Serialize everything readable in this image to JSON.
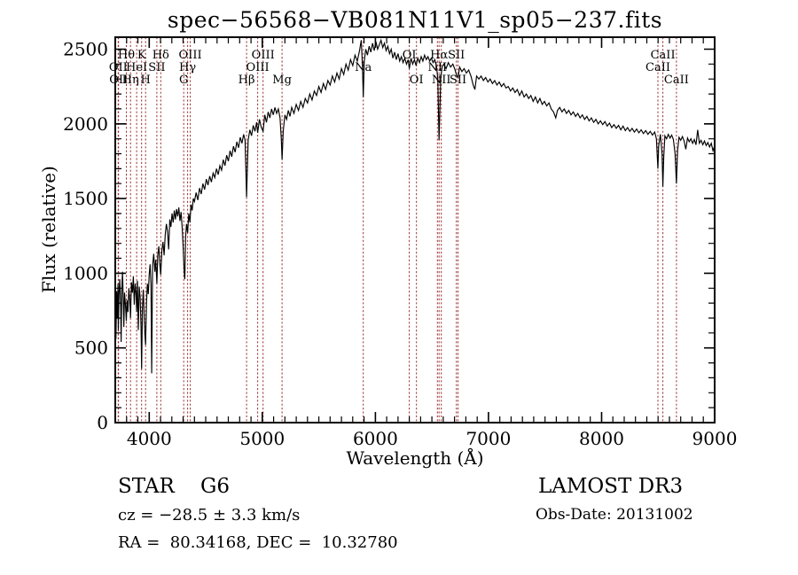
{
  "title": "spec−56568−VB081N11V1_sp05−237.fits",
  "annotations": {
    "class_line": "STAR    G6",
    "cz_line": "cz = −28.5 ± 3.3 km/s",
    "radec_line": "RA =  80.34168, DEC =  10.32780",
    "survey": "LAMOST DR3",
    "obs_date": "Obs-Date: 20131002"
  },
  "chart_data": {
    "type": "line",
    "title": "spec−56568−VB081N11V1_sp05−237.fits",
    "xlabel": "Wavelength (Å)",
    "ylabel": "Flux (relative)",
    "xlim": [
      3700,
      9000
    ],
    "ylim": [
      0,
      2580
    ],
    "x_ticks": [
      4000,
      5000,
      6000,
      7000,
      8000,
      9000
    ],
    "y_ticks": [
      0,
      500,
      1000,
      1500,
      2000,
      2500
    ],
    "x_minor_step": 100,
    "y_minor_step": 100,
    "grid": false,
    "legend": "none",
    "line_color": "#000000",
    "marker_line_color": "#9e3030",
    "spectral_lines": [
      {
        "label": "OII",
        "wavelength": 3726,
        "row": 2
      },
      {
        "label": "OII",
        "wavelength": 3729,
        "row": 3
      },
      {
        "label": "Hθ",
        "wavelength": 3798,
        "row": 1
      },
      {
        "label": "Hη",
        "wavelength": 3835,
        "row": 3
      },
      {
        "label": "HeI",
        "wavelength": 3889,
        "row": 2
      },
      {
        "label": "K",
        "wavelength": 3933,
        "row": 1
      },
      {
        "label": "H",
        "wavelength": 3968,
        "row": 3
      },
      {
        "label": "SII",
        "wavelength": 4068,
        "row": 2
      },
      {
        "label": "Hδ",
        "wavelength": 4102,
        "row": 1
      },
      {
        "label": "G",
        "wavelength": 4305,
        "row": 3
      },
      {
        "label": "Hγ",
        "wavelength": 4340,
        "row": 2
      },
      {
        "label": "OIII",
        "wavelength": 4363,
        "row": 1
      },
      {
        "label": "Hβ",
        "wavelength": 4861,
        "row": 3
      },
      {
        "label": "OIII",
        "wavelength": 4959,
        "row": 2
      },
      {
        "label": "OIII",
        "wavelength": 5007,
        "row": 1
      },
      {
        "label": "Mg",
        "wavelength": 5175,
        "row": 3
      },
      {
        "label": "Na",
        "wavelength": 5893,
        "row": 2
      },
      {
        "label": "OI",
        "wavelength": 6300,
        "row": 1
      },
      {
        "label": "OI",
        "wavelength": 6363,
        "row": 3
      },
      {
        "label": "NII",
        "wavelength": 6548,
        "row": 2
      },
      {
        "label": "Hα",
        "wavelength": 6563,
        "row": 1
      },
      {
        "label": "NII",
        "wavelength": 6583,
        "row": 3
      },
      {
        "label": "SII",
        "wavelength": 6716,
        "row": 1
      },
      {
        "label": "SII",
        "wavelength": 6731,
        "row": 3
      },
      {
        "label": "CaII",
        "wavelength": 8498,
        "row": 2
      },
      {
        "label": "CaII",
        "wavelength": 8542,
        "row": 1
      },
      {
        "label": "CaII",
        "wavelength": 8662,
        "row": 3
      }
    ],
    "spectrum": [
      [
        3700,
        160
      ],
      [
        3701,
        1040
      ],
      [
        3706,
        560
      ],
      [
        3712,
        880
      ],
      [
        3718,
        700
      ],
      [
        3724,
        930
      ],
      [
        3727,
        620
      ],
      [
        3733,
        860
      ],
      [
        3740,
        960
      ],
      [
        3748,
        780
      ],
      [
        3752,
        540
      ],
      [
        3758,
        900
      ],
      [
        3764,
        1010
      ],
      [
        3770,
        850
      ],
      [
        3776,
        640
      ],
      [
        3782,
        870
      ],
      [
        3790,
        790
      ],
      [
        3798,
        680
      ],
      [
        3804,
        820
      ],
      [
        3812,
        740
      ],
      [
        3820,
        900
      ],
      [
        3828,
        820
      ],
      [
        3835,
        700
      ],
      [
        3843,
        940
      ],
      [
        3852,
        870
      ],
      [
        3860,
        980
      ],
      [
        3868,
        790
      ],
      [
        3876,
        930
      ],
      [
        3884,
        860
      ],
      [
        3889,
        740
      ],
      [
        3896,
        950
      ],
      [
        3904,
        620
      ],
      [
        3912,
        910
      ],
      [
        3920,
        840
      ],
      [
        3928,
        640
      ],
      [
        3933,
        360
      ],
      [
        3940,
        760
      ],
      [
        3948,
        890
      ],
      [
        3956,
        700
      ],
      [
        3962,
        590
      ],
      [
        3968,
        520
      ],
      [
        3976,
        800
      ],
      [
        3984,
        930
      ],
      [
        3992,
        860
      ],
      [
        4000,
        990
      ],
      [
        4008,
        1060
      ],
      [
        4016,
        920
      ],
      [
        4022,
        330
      ],
      [
        4030,
        1050
      ],
      [
        4040,
        1130
      ],
      [
        4050,
        1010
      ],
      [
        4058,
        1090
      ],
      [
        4068,
        930
      ],
      [
        4076,
        1120
      ],
      [
        4085,
        1180
      ],
      [
        4094,
        1060
      ],
      [
        4102,
        990
      ],
      [
        4112,
        1150
      ],
      [
        4122,
        1210
      ],
      [
        4132,
        1120
      ],
      [
        4142,
        1260
      ],
      [
        4152,
        1330
      ],
      [
        4162,
        1280
      ],
      [
        4172,
        1160
      ],
      [
        4182,
        1360
      ],
      [
        4192,
        1310
      ],
      [
        4202,
        1400
      ],
      [
        4212,
        1340
      ],
      [
        4222,
        1420
      ],
      [
        4232,
        1360
      ],
      [
        4242,
        1430
      ],
      [
        4252,
        1380
      ],
      [
        4262,
        1440
      ],
      [
        4272,
        1350
      ],
      [
        4282,
        1410
      ],
      [
        4292,
        1300
      ],
      [
        4300,
        1180
      ],
      [
        4308,
        1030
      ],
      [
        4315,
        960
      ],
      [
        4322,
        1240
      ],
      [
        4330,
        1330
      ],
      [
        4340,
        1270
      ],
      [
        4350,
        1400
      ],
      [
        4360,
        1340
      ],
      [
        4370,
        1460
      ],
      [
        4380,
        1420
      ],
      [
        4390,
        1500
      ],
      [
        4400,
        1480
      ],
      [
        4415,
        1540
      ],
      [
        4430,
        1490
      ],
      [
        4445,
        1570
      ],
      [
        4460,
        1530
      ],
      [
        4475,
        1600
      ],
      [
        4490,
        1560
      ],
      [
        4505,
        1630
      ],
      [
        4520,
        1590
      ],
      [
        4535,
        1650
      ],
      [
        4550,
        1610
      ],
      [
        4565,
        1670
      ],
      [
        4580,
        1640
      ],
      [
        4595,
        1700
      ],
      [
        4610,
        1660
      ],
      [
        4625,
        1720
      ],
      [
        4640,
        1690
      ],
      [
        4655,
        1760
      ],
      [
        4670,
        1720
      ],
      [
        4685,
        1790
      ],
      [
        4700,
        1750
      ],
      [
        4715,
        1820
      ],
      [
        4730,
        1780
      ],
      [
        4745,
        1850
      ],
      [
        4760,
        1810
      ],
      [
        4775,
        1880
      ],
      [
        4790,
        1840
      ],
      [
        4805,
        1910
      ],
      [
        4820,
        1870
      ],
      [
        4835,
        1930
      ],
      [
        4848,
        1890
      ],
      [
        4861,
        1510
      ],
      [
        4875,
        1890
      ],
      [
        4890,
        1960
      ],
      [
        4905,
        1920
      ],
      [
        4920,
        1990
      ],
      [
        4935,
        1950
      ],
      [
        4950,
        2010
      ],
      [
        4959,
        1940
      ],
      [
        4975,
        2030
      ],
      [
        4990,
        1980
      ],
      [
        5007,
        1950
      ],
      [
        5022,
        2060
      ],
      [
        5037,
        2010
      ],
      [
        5052,
        2080
      ],
      [
        5067,
        2040
      ],
      [
        5082,
        2100
      ],
      [
        5097,
        2060
      ],
      [
        5112,
        2110
      ],
      [
        5127,
        2070
      ],
      [
        5142,
        2100
      ],
      [
        5157,
        2040
      ],
      [
        5168,
        1900
      ],
      [
        5175,
        1760
      ],
      [
        5185,
        1950
      ],
      [
        5200,
        2060
      ],
      [
        5215,
        2030
      ],
      [
        5230,
        2090
      ],
      [
        5245,
        2050
      ],
      [
        5260,
        2110
      ],
      [
        5280,
        2070
      ],
      [
        5300,
        2130
      ],
      [
        5320,
        2090
      ],
      [
        5340,
        2150
      ],
      [
        5360,
        2110
      ],
      [
        5380,
        2170
      ],
      [
        5400,
        2140
      ],
      [
        5420,
        2200
      ],
      [
        5440,
        2160
      ],
      [
        5460,
        2220
      ],
      [
        5480,
        2190
      ],
      [
        5500,
        2250
      ],
      [
        5520,
        2210
      ],
      [
        5540,
        2270
      ],
      [
        5560,
        2230
      ],
      [
        5580,
        2290
      ],
      [
        5600,
        2260
      ],
      [
        5620,
        2320
      ],
      [
        5640,
        2280
      ],
      [
        5660,
        2340
      ],
      [
        5680,
        2300
      ],
      [
        5700,
        2370
      ],
      [
        5720,
        2330
      ],
      [
        5740,
        2400
      ],
      [
        5760,
        2360
      ],
      [
        5780,
        2430
      ],
      [
        5800,
        2390
      ],
      [
        5820,
        2460
      ],
      [
        5840,
        2420
      ],
      [
        5860,
        2490
      ],
      [
        5875,
        2560
      ],
      [
        5885,
        2400
      ],
      [
        5893,
        2180
      ],
      [
        5902,
        2420
      ],
      [
        5915,
        2500
      ],
      [
        5930,
        2460
      ],
      [
        5945,
        2520
      ],
      [
        5960,
        2480
      ],
      [
        5975,
        2540
      ],
      [
        5990,
        2490
      ],
      [
        6005,
        2550
      ],
      [
        6020,
        2500
      ],
      [
        6035,
        2530
      ],
      [
        6050,
        2560
      ],
      [
        6065,
        2510
      ],
      [
        6080,
        2540
      ],
      [
        6095,
        2490
      ],
      [
        6110,
        2520
      ],
      [
        6125,
        2470
      ],
      [
        6140,
        2500
      ],
      [
        6155,
        2440
      ],
      [
        6170,
        2480
      ],
      [
        6185,
        2430
      ],
      [
        6200,
        2470
      ],
      [
        6215,
        2420
      ],
      [
        6230,
        2450
      ],
      [
        6245,
        2410
      ],
      [
        6260,
        2440
      ],
      [
        6275,
        2400
      ],
      [
        6290,
        2430
      ],
      [
        6300,
        2370
      ],
      [
        6315,
        2440
      ],
      [
        6330,
        2400
      ],
      [
        6345,
        2430
      ],
      [
        6360,
        2390
      ],
      [
        6375,
        2440
      ],
      [
        6390,
        2410
      ],
      [
        6405,
        2450
      ],
      [
        6420,
        2420
      ],
      [
        6435,
        2460
      ],
      [
        6450,
        2430
      ],
      [
        6465,
        2450
      ],
      [
        6480,
        2420
      ],
      [
        6495,
        2440
      ],
      [
        6510,
        2410
      ],
      [
        6525,
        2430
      ],
      [
        6540,
        2390
      ],
      [
        6552,
        2300
      ],
      [
        6563,
        1890
      ],
      [
        6578,
        2310
      ],
      [
        6590,
        2380
      ],
      [
        6605,
        2400
      ],
      [
        6625,
        2370
      ],
      [
        6645,
        2410
      ],
      [
        6665,
        2380
      ],
      [
        6685,
        2400
      ],
      [
        6705,
        2360
      ],
      [
        6716,
        2330
      ],
      [
        6731,
        2310
      ],
      [
        6745,
        2380
      ],
      [
        6765,
        2350
      ],
      [
        6785,
        2370
      ],
      [
        6805,
        2340
      ],
      [
        6825,
        2360
      ],
      [
        6845,
        2320
      ],
      [
        6865,
        2260
      ],
      [
        6880,
        2230
      ],
      [
        6895,
        2320
      ],
      [
        6915,
        2300
      ],
      [
        6935,
        2320
      ],
      [
        6955,
        2290
      ],
      [
        6975,
        2310
      ],
      [
        6995,
        2280
      ],
      [
        7015,
        2300
      ],
      [
        7035,
        2270
      ],
      [
        7055,
        2290
      ],
      [
        7075,
        2260
      ],
      [
        7095,
        2280
      ],
      [
        7115,
        2250
      ],
      [
        7135,
        2270
      ],
      [
        7155,
        2240
      ],
      [
        7175,
        2250
      ],
      [
        7195,
        2220
      ],
      [
        7215,
        2240
      ],
      [
        7235,
        2210
      ],
      [
        7255,
        2230
      ],
      [
        7275,
        2190
      ],
      [
        7295,
        2220
      ],
      [
        7315,
        2180
      ],
      [
        7335,
        2200
      ],
      [
        7355,
        2170
      ],
      [
        7375,
        2190
      ],
      [
        7395,
        2150
      ],
      [
        7415,
        2180
      ],
      [
        7435,
        2140
      ],
      [
        7455,
        2170
      ],
      [
        7475,
        2130
      ],
      [
        7495,
        2150
      ],
      [
        7515,
        2120
      ],
      [
        7535,
        2140
      ],
      [
        7555,
        2100
      ],
      [
        7575,
        2080
      ],
      [
        7595,
        2040
      ],
      [
        7610,
        2090
      ],
      [
        7630,
        2110
      ],
      [
        7650,
        2080
      ],
      [
        7670,
        2100
      ],
      [
        7690,
        2070
      ],
      [
        7710,
        2090
      ],
      [
        7730,
        2060
      ],
      [
        7750,
        2080
      ],
      [
        7770,
        2050
      ],
      [
        7790,
        2070
      ],
      [
        7810,
        2040
      ],
      [
        7830,
        2060
      ],
      [
        7850,
        2030
      ],
      [
        7870,
        2050
      ],
      [
        7890,
        2020
      ],
      [
        7910,
        2040
      ],
      [
        7930,
        2010
      ],
      [
        7950,
        2030
      ],
      [
        7970,
        2000
      ],
      [
        7990,
        2020
      ],
      [
        8010,
        1995
      ],
      [
        8030,
        2015
      ],
      [
        8050,
        1985
      ],
      [
        8070,
        2005
      ],
      [
        8090,
        1975
      ],
      [
        8110,
        1995
      ],
      [
        8130,
        1970
      ],
      [
        8150,
        1990
      ],
      [
        8170,
        1960
      ],
      [
        8190,
        1985
      ],
      [
        8210,
        1955
      ],
      [
        8230,
        1975
      ],
      [
        8250,
        1950
      ],
      [
        8270,
        1970
      ],
      [
        8290,
        1945
      ],
      [
        8310,
        1965
      ],
      [
        8330,
        1940
      ],
      [
        8350,
        1960
      ],
      [
        8370,
        1935
      ],
      [
        8390,
        1955
      ],
      [
        8410,
        1930
      ],
      [
        8430,
        1950
      ],
      [
        8450,
        1925
      ],
      [
        8470,
        1945
      ],
      [
        8485,
        1900
      ],
      [
        8498,
        1700
      ],
      [
        8505,
        1850
      ],
      [
        8520,
        1930
      ],
      [
        8535,
        1800
      ],
      [
        8542,
        1580
      ],
      [
        8550,
        1780
      ],
      [
        8560,
        1920
      ],
      [
        8575,
        1900
      ],
      [
        8590,
        1930
      ],
      [
        8605,
        1905
      ],
      [
        8620,
        1925
      ],
      [
        8635,
        1895
      ],
      [
        8650,
        1800
      ],
      [
        8662,
        1600
      ],
      [
        8672,
        1820
      ],
      [
        8685,
        1910
      ],
      [
        8700,
        1890
      ],
      [
        8715,
        1915
      ],
      [
        8730,
        1885
      ],
      [
        8745,
        1830
      ],
      [
        8760,
        1905
      ],
      [
        8775,
        1880
      ],
      [
        8790,
        1900
      ],
      [
        8805,
        1870
      ],
      [
        8820,
        1895
      ],
      [
        8835,
        1860
      ],
      [
        8850,
        1960
      ],
      [
        8865,
        1870
      ],
      [
        8880,
        1890
      ],
      [
        8895,
        1860
      ],
      [
        8910,
        1885
      ],
      [
        8925,
        1855
      ],
      [
        8940,
        1875
      ],
      [
        8955,
        1845
      ],
      [
        8970,
        1870
      ],
      [
        8985,
        1820
      ],
      [
        9000,
        1855
      ]
    ]
  }
}
